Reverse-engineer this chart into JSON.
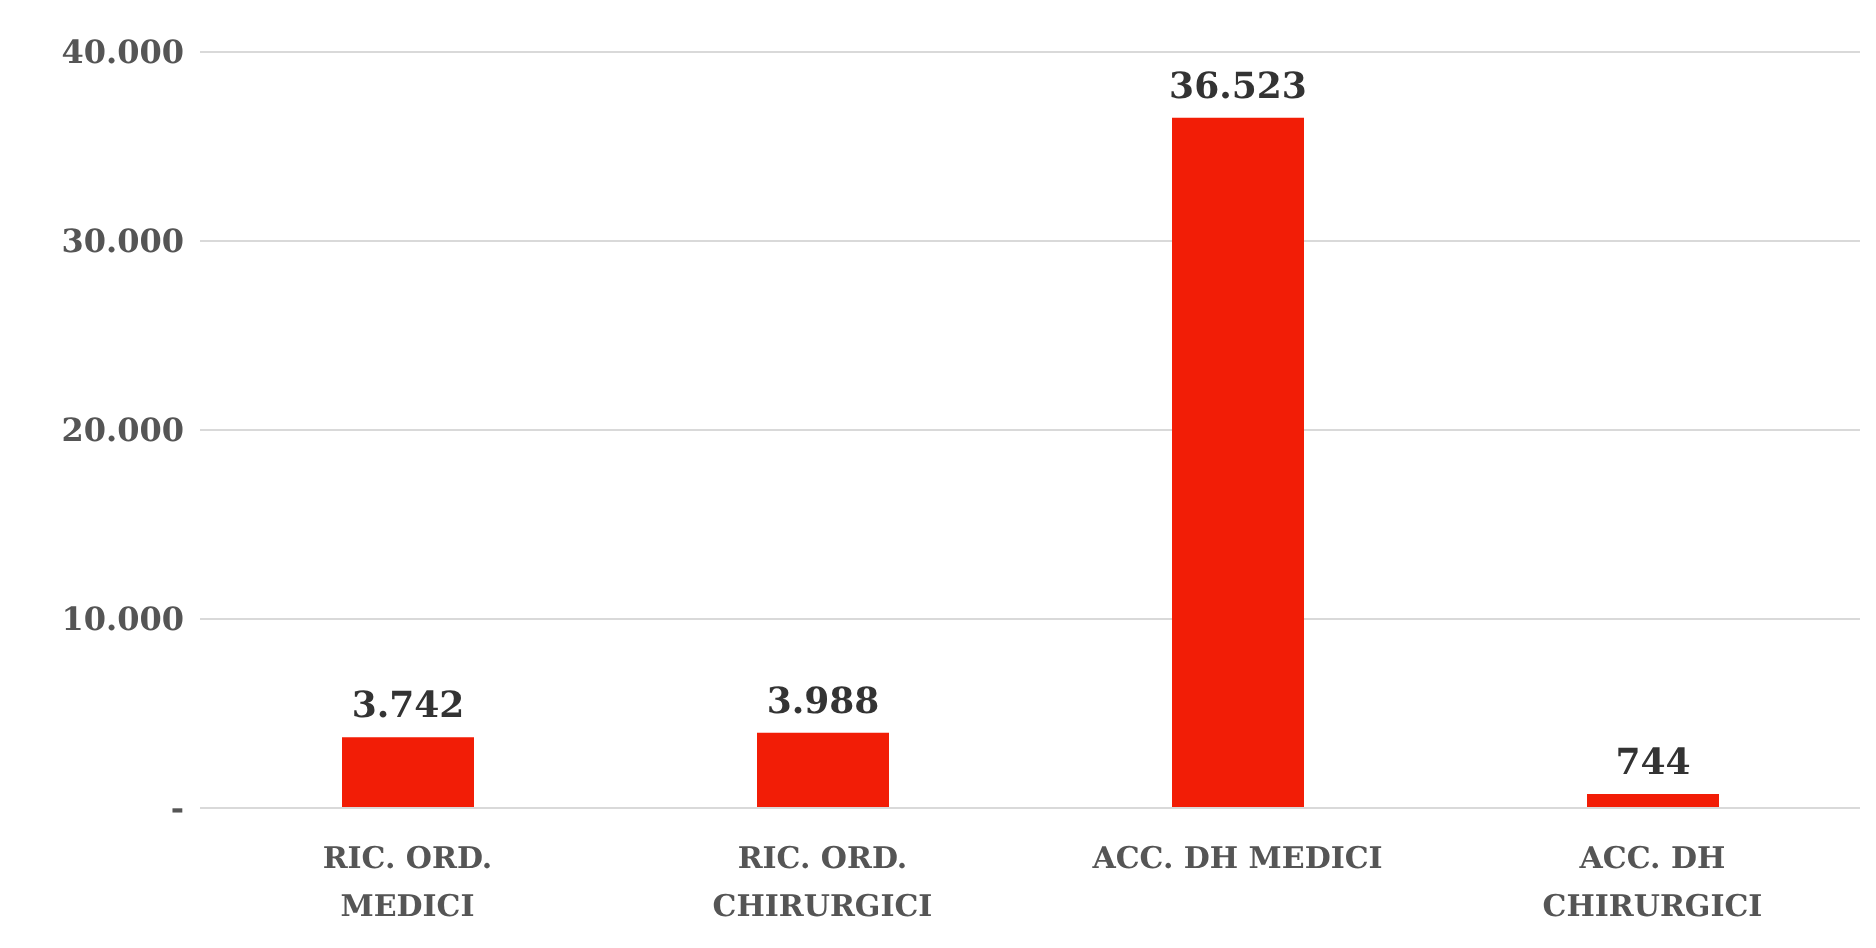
{
  "chart_data": {
    "type": "bar",
    "categories": [
      "RIC. ORD. MEDICI",
      "RIC. ORD. CHIRURGICI",
      "ACC. DH MEDICI",
      "ACC. DH CHIRURGICI"
    ],
    "values": [
      3742,
      3988,
      36523,
      744
    ],
    "value_labels": [
      "3.742",
      "3.988",
      "36.523",
      "744"
    ],
    "color": "#f21d06",
    "ylim": [
      0,
      40000
    ],
    "yticks": [
      {
        "value": 0,
        "label": "-"
      },
      {
        "value": 10000,
        "label": "10.000"
      },
      {
        "value": 20000,
        "label": "20.000"
      },
      {
        "value": 30000,
        "label": "30.000"
      },
      {
        "value": 40000,
        "label": "40.000"
      }
    ],
    "grid": "y"
  }
}
